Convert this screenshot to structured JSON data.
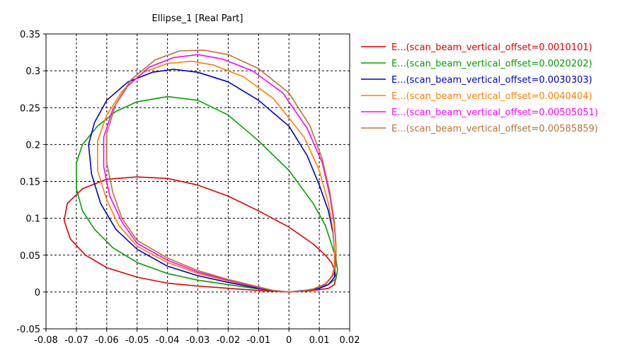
{
  "chart_data": {
    "type": "line",
    "title": "Ellipse_1 [Real Part]",
    "xlabel": "",
    "ylabel": "",
    "xlim": [
      -0.08,
      0.02
    ],
    "ylim": [
      -0.05,
      0.35
    ],
    "grid": true,
    "legend_position": "right",
    "x_ticks": [
      {
        "value": -0.08,
        "label": "-0.08"
      },
      {
        "value": -0.07,
        "label": "-0.07"
      },
      {
        "value": -0.06,
        "label": "-0.06"
      },
      {
        "value": -0.05,
        "label": "-0.05"
      },
      {
        "value": -0.04,
        "label": "-0.04"
      },
      {
        "value": -0.03,
        "label": "-0.03"
      },
      {
        "value": -0.02,
        "label": "-0.02"
      },
      {
        "value": -0.01,
        "label": "-0.01"
      },
      {
        "value": 0,
        "label": "0"
      },
      {
        "value": 0.01,
        "label": "0.01"
      },
      {
        "value": 0.02,
        "label": "0.02"
      }
    ],
    "y_ticks": [
      {
        "value": -0.05,
        "label": "-0.05"
      },
      {
        "value": 0,
        "label": "0"
      },
      {
        "value": 0.05,
        "label": "0.05"
      },
      {
        "value": 0.1,
        "label": "0.1"
      },
      {
        "value": 0.15,
        "label": "0.15"
      },
      {
        "value": 0.2,
        "label": "0.2"
      },
      {
        "value": 0.25,
        "label": "0.25"
      },
      {
        "value": 0.3,
        "label": "0.3"
      },
      {
        "value": 0.35,
        "label": "0.35"
      }
    ],
    "series": [
      {
        "name": "E...(scan_beam_vertical_offset=0.0010101)",
        "color": "#e00000",
        "x": [
          0,
          -0.005,
          -0.01,
          -0.02,
          -0.03,
          -0.04,
          -0.05,
          -0.06,
          -0.067,
          -0.072,
          -0.074,
          -0.073,
          -0.068,
          -0.06,
          -0.05,
          -0.04,
          -0.03,
          -0.02,
          -0.01,
          0,
          0.008,
          0.012,
          0.014,
          0.015,
          0.0155,
          0.015,
          0.013,
          0.01,
          0.005,
          0
        ],
        "y": [
          0,
          0.001,
          0.002,
          0.005,
          0.008,
          0.012,
          0.02,
          0.033,
          0.05,
          0.072,
          0.097,
          0.12,
          0.14,
          0.153,
          0.156,
          0.154,
          0.145,
          0.13,
          0.11,
          0.088,
          0.065,
          0.05,
          0.04,
          0.03,
          0.02,
          0.01,
          0.005,
          0.003,
          0.001,
          0
        ]
      },
      {
        "name": "E...(scan_beam_vertical_offset=0.0020202)",
        "color": "#00a000",
        "x": [
          0,
          -0.005,
          -0.01,
          -0.02,
          -0.03,
          -0.04,
          -0.05,
          -0.058,
          -0.064,
          -0.068,
          -0.07,
          -0.07,
          -0.068,
          -0.063,
          -0.057,
          -0.05,
          -0.04,
          -0.03,
          -0.02,
          -0.01,
          0,
          0.008,
          0.012,
          0.014,
          0.0155,
          0.016,
          0.0155,
          0.013,
          0.01,
          0.005,
          0
        ],
        "y": [
          0,
          0.002,
          0.004,
          0.01,
          0.016,
          0.025,
          0.04,
          0.06,
          0.085,
          0.11,
          0.14,
          0.175,
          0.2,
          0.225,
          0.245,
          0.258,
          0.265,
          0.26,
          0.24,
          0.205,
          0.165,
          0.12,
          0.09,
          0.065,
          0.045,
          0.03,
          0.018,
          0.01,
          0.005,
          0.002,
          0
        ]
      },
      {
        "name": "E...(scan_beam_vertical_offset=0.0030303)",
        "color": "#0000c8",
        "x": [
          0,
          -0.005,
          -0.01,
          -0.02,
          -0.03,
          -0.04,
          -0.05,
          -0.057,
          -0.062,
          -0.065,
          -0.066,
          -0.064,
          -0.06,
          -0.053,
          -0.045,
          -0.038,
          -0.03,
          -0.02,
          -0.01,
          0,
          0.006,
          0.01,
          0.013,
          0.0145,
          0.015,
          0.0152,
          0.015,
          0.013,
          0.01,
          0.005,
          0
        ],
        "y": [
          0,
          0.002,
          0.005,
          0.013,
          0.022,
          0.035,
          0.058,
          0.085,
          0.12,
          0.16,
          0.2,
          0.23,
          0.26,
          0.285,
          0.298,
          0.302,
          0.298,
          0.285,
          0.26,
          0.225,
          0.185,
          0.145,
          0.11,
          0.08,
          0.055,
          0.035,
          0.02,
          0.01,
          0.005,
          0.002,
          0
        ]
      },
      {
        "name": "E...(scan_beam_vertical_offset=0.0040404)",
        "color": "#ff8000",
        "x": [
          0,
          -0.005,
          -0.01,
          -0.02,
          -0.03,
          -0.04,
          -0.05,
          -0.056,
          -0.06,
          -0.063,
          -0.063,
          -0.06,
          -0.055,
          -0.048,
          -0.04,
          -0.032,
          -0.025,
          -0.015,
          -0.005,
          0.005,
          0.01,
          0.013,
          0.0145,
          0.015,
          0.015,
          0.014,
          0.012,
          0.008,
          0.004,
          0
        ],
        "y": [
          0,
          0.002,
          0.006,
          0.015,
          0.025,
          0.04,
          0.062,
          0.09,
          0.125,
          0.165,
          0.205,
          0.24,
          0.272,
          0.298,
          0.31,
          0.313,
          0.308,
          0.292,
          0.262,
          0.21,
          0.165,
          0.12,
          0.085,
          0.055,
          0.035,
          0.02,
          0.01,
          0.004,
          0.001,
          0
        ]
      },
      {
        "name": "E...(scan_beam_vertical_offset=0.00505051)",
        "color": "#ff00ff",
        "x": [
          0,
          -0.005,
          -0.01,
          -0.02,
          -0.03,
          -0.04,
          -0.05,
          -0.055,
          -0.059,
          -0.061,
          -0.061,
          -0.058,
          -0.053,
          -0.046,
          -0.038,
          -0.03,
          -0.022,
          -0.012,
          -0.002,
          0.006,
          0.011,
          0.0135,
          0.015,
          0.0155,
          0.0155,
          0.0145,
          0.012,
          0.008,
          0.004,
          0
        ],
        "y": [
          0,
          0.002,
          0.006,
          0.016,
          0.027,
          0.043,
          0.066,
          0.095,
          0.13,
          0.17,
          0.21,
          0.248,
          0.28,
          0.305,
          0.318,
          0.322,
          0.316,
          0.3,
          0.27,
          0.222,
          0.175,
          0.13,
          0.09,
          0.06,
          0.038,
          0.022,
          0.01,
          0.004,
          0.001,
          0
        ]
      },
      {
        "name": "E...(scan_beam_vertical_offset=0.00585859)",
        "color": "#b87333",
        "x": [
          0,
          -0.005,
          -0.01,
          -0.02,
          -0.03,
          -0.04,
          -0.05,
          -0.055,
          -0.058,
          -0.06,
          -0.06,
          -0.057,
          -0.052,
          -0.044,
          -0.036,
          -0.028,
          -0.02,
          -0.01,
          0,
          0.007,
          0.011,
          0.0135,
          0.015,
          0.0155,
          0.0155,
          0.0145,
          0.012,
          0.008,
          0.004,
          0
        ],
        "y": [
          0,
          0.002,
          0.007,
          0.017,
          0.029,
          0.046,
          0.07,
          0.1,
          0.135,
          0.175,
          0.215,
          0.255,
          0.288,
          0.315,
          0.327,
          0.328,
          0.322,
          0.303,
          0.27,
          0.225,
          0.18,
          0.135,
          0.095,
          0.063,
          0.04,
          0.023,
          0.011,
          0.004,
          0.001,
          0
        ]
      }
    ]
  }
}
